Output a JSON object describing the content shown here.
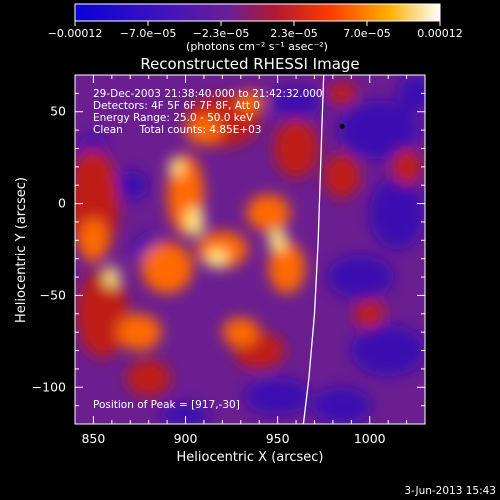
{
  "chart_data": {
    "type": "heatmap",
    "title": "Reconstructed RHESSI Image",
    "xlabel": "Heliocentric X (arcsec)",
    "ylabel": "Heliocentric Y (arcsec)",
    "xlim": [
      840,
      1030
    ],
    "ylim": [
      -120,
      70
    ],
    "x_ticks": [
      850,
      900,
      950,
      1000
    ],
    "x_tick_labels": [
      "850",
      "900",
      "950",
      "1000"
    ],
    "y_ticks": [
      50,
      0,
      -50,
      -100
    ],
    "y_tick_labels": [
      "50",
      "0",
      "−50",
      "−100"
    ],
    "colorbar": {
      "tick_labels": [
        "−0.00012",
        "−7.0e−05",
        "−2.3e−05",
        "2.3e−05",
        "7.0e−05",
        "0.00012"
      ],
      "unit_label": "(photons cm⁻² s⁻¹ asec⁻²)",
      "range": [
        -0.00012,
        0.00012
      ]
    },
    "annotations": [
      "29-Dec-2003 21:38:40.000 to 21:42:32.000",
      "Detectors: 4F 5F 6F 7F 8F, Att 0",
      "Energy Range: 25.0 - 50.0 keV",
      "Clean     Total counts: 4.85E+03"
    ],
    "peak_text": "Position of Peak = [917,-30]",
    "peak_position": [
      917,
      -30
    ],
    "limb_x": [
      975,
      974,
      973,
      972,
      970,
      967,
      964
    ],
    "limb_y": [
      70,
      40,
      10,
      -20,
      -60,
      -95,
      -120
    ],
    "colors": {
      "negative": "#3a0fb0",
      "neutral": "#7a2490",
      "positive_low": "#c01a12",
      "positive_mid": "#ff6a00",
      "positive_high": "#ffee80",
      "limb": "#ffffff"
    }
  },
  "footer": {
    "date": "3-Jun-2013 15:43"
  }
}
